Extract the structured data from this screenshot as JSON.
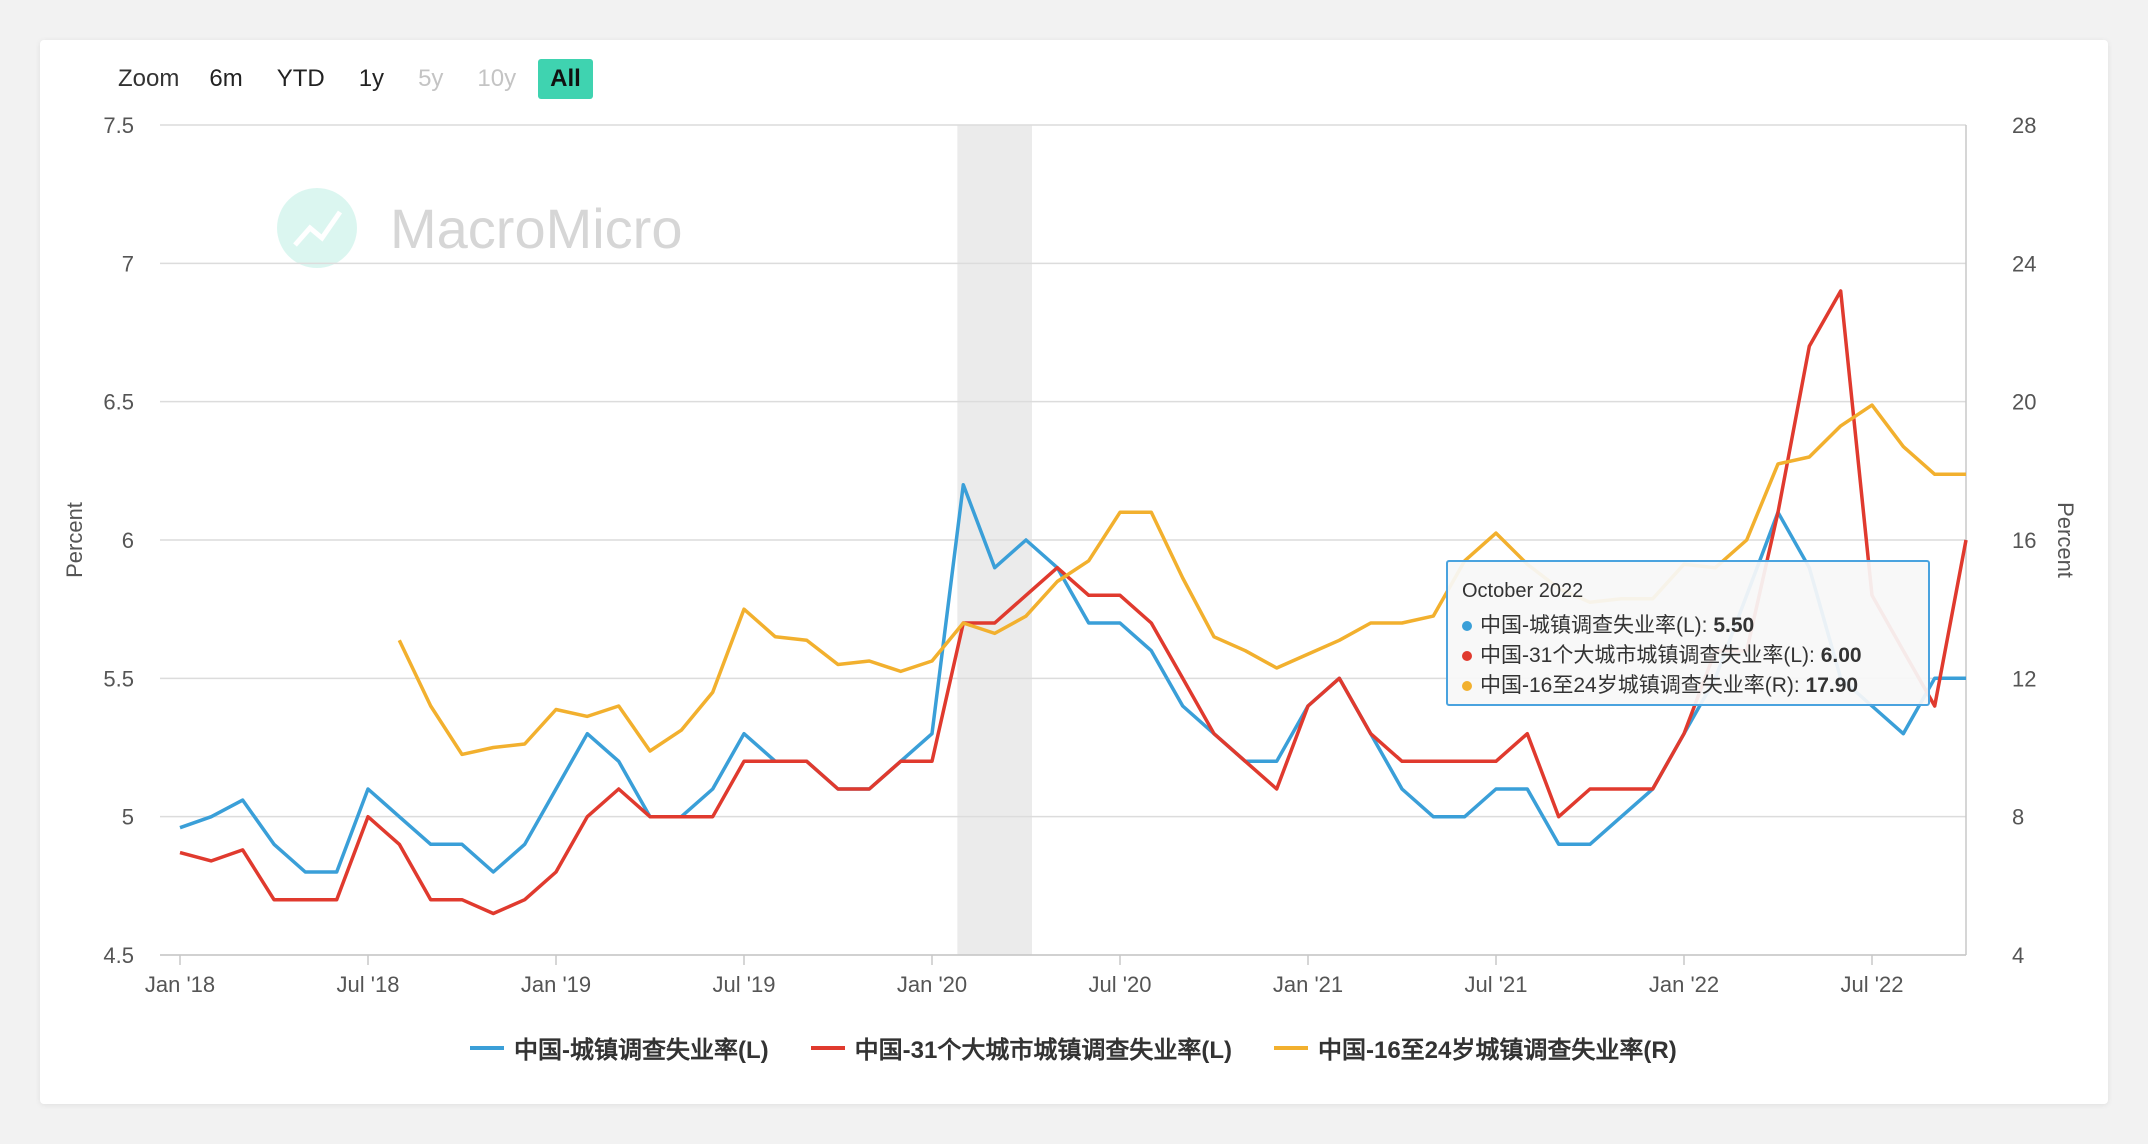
{
  "zoom": {
    "label": "Zoom",
    "buttons": [
      {
        "label": "6m",
        "state": "normal"
      },
      {
        "label": "YTD",
        "state": "normal"
      },
      {
        "label": "1y",
        "state": "normal"
      },
      {
        "label": "5y",
        "state": "disabled"
      },
      {
        "label": "10y",
        "state": "disabled"
      },
      {
        "label": "All",
        "state": "active"
      }
    ]
  },
  "watermark": "MacroMicro",
  "tooltip": {
    "title": "October 2022",
    "rows": [
      {
        "label": "中国-城镇调查失业率(L): ",
        "value": "5.50",
        "color": "#3a9fd8"
      },
      {
        "label": "中国-31个大城市城镇调查失业率(L): ",
        "value": "6.00",
        "color": "#e03a2e"
      },
      {
        "label": "中国-16至24岁城镇调查失业率(R): ",
        "value": "17.90",
        "color": "#f2b02e"
      }
    ]
  },
  "chart_data": {
    "type": "line",
    "x": [
      "2018-01",
      "2018-02",
      "2018-03",
      "2018-04",
      "2018-05",
      "2018-06",
      "2018-07",
      "2018-08",
      "2018-09",
      "2018-10",
      "2018-11",
      "2018-12",
      "2019-01",
      "2019-02",
      "2019-03",
      "2019-04",
      "2019-05",
      "2019-06",
      "2019-07",
      "2019-08",
      "2019-09",
      "2019-10",
      "2019-11",
      "2019-12",
      "2020-01",
      "2020-02",
      "2020-03",
      "2020-04",
      "2020-05",
      "2020-06",
      "2020-07",
      "2020-08",
      "2020-09",
      "2020-10",
      "2020-11",
      "2020-12",
      "2021-01",
      "2021-02",
      "2021-03",
      "2021-04",
      "2021-05",
      "2021-06",
      "2021-07",
      "2021-08",
      "2021-09",
      "2021-10",
      "2021-11",
      "2021-12",
      "2022-01",
      "2022-02",
      "2022-03",
      "2022-04",
      "2022-05",
      "2022-06",
      "2022-07",
      "2022-08",
      "2022-09",
      "2022-10"
    ],
    "x_tick_labels": [
      "Jan '18",
      "Jul '18",
      "Jan '19",
      "Jul '19",
      "Jan '20",
      "Jul '20",
      "Jan '21",
      "Jul '21",
      "Jan '22",
      "Jul '22"
    ],
    "y_left": {
      "label": "Percent",
      "ticks": [
        "4.5",
        "5",
        "5.5",
        "6",
        "6.5",
        "7",
        "7.5"
      ],
      "range": [
        4.5,
        7.5
      ]
    },
    "y_right": {
      "label": "Percent",
      "ticks": [
        "4",
        "8",
        "12",
        "16",
        "20",
        "24",
        "28"
      ],
      "range": [
        4,
        28
      ]
    },
    "shaded_range": [
      "2020-02",
      "2020-04"
    ],
    "grid": true,
    "legend_position": "bottom",
    "series": [
      {
        "name": "中国-城镇调查失业率(L)",
        "axis": "left",
        "color": "#3a9fd8",
        "values": [
          4.96,
          5.0,
          5.06,
          4.9,
          4.8,
          4.8,
          5.1,
          5.0,
          4.9,
          4.9,
          4.8,
          4.9,
          5.1,
          5.3,
          5.2,
          5.0,
          5.0,
          5.1,
          5.3,
          5.2,
          5.2,
          5.1,
          5.1,
          5.2,
          5.3,
          6.2,
          5.9,
          6.0,
          5.9,
          5.7,
          5.7,
          5.6,
          5.4,
          5.3,
          5.2,
          5.2,
          5.4,
          5.5,
          5.3,
          5.1,
          5.0,
          5.0,
          5.1,
          5.1,
          4.9,
          4.9,
          5.0,
          5.1,
          5.3,
          5.5,
          5.8,
          6.1,
          5.9,
          5.5,
          5.4,
          5.3,
          5.5,
          5.5
        ]
      },
      {
        "name": "中国-31个大城市城镇调查失业率(L)",
        "axis": "left",
        "color": "#e03a2e",
        "values": [
          4.87,
          4.84,
          4.88,
          4.7,
          4.7,
          4.7,
          5.0,
          4.9,
          4.7,
          4.7,
          4.65,
          4.7,
          4.8,
          5.0,
          5.1,
          5.0,
          5.0,
          5.0,
          5.2,
          5.2,
          5.2,
          5.1,
          5.1,
          5.2,
          5.2,
          5.7,
          5.7,
          5.8,
          5.9,
          5.8,
          5.8,
          5.7,
          5.5,
          5.3,
          5.2,
          5.1,
          5.4,
          5.5,
          5.3,
          5.2,
          5.2,
          5.2,
          5.2,
          5.3,
          5.0,
          5.1,
          5.1,
          5.1,
          5.3,
          5.6,
          5.6,
          6.1,
          6.7,
          6.9,
          5.8,
          5.6,
          5.4,
          6.0
        ]
      },
      {
        "name": "中国-16至24岁城镇调查失业率(R)",
        "axis": "right",
        "color": "#f2b02e",
        "values": [
          null,
          null,
          null,
          null,
          null,
          null,
          null,
          13.1,
          11.2,
          9.8,
          10.0,
          10.1,
          11.1,
          10.9,
          11.2,
          9.9,
          10.5,
          11.6,
          14.0,
          13.2,
          13.1,
          12.4,
          12.5,
          12.2,
          12.5,
          13.6,
          13.3,
          13.8,
          14.8,
          15.4,
          16.8,
          16.8,
          14.9,
          13.2,
          12.8,
          12.3,
          12.7,
          13.1,
          13.6,
          13.6,
          13.8,
          15.4,
          16.2,
          15.3,
          14.6,
          14.2,
          14.3,
          14.3,
          15.3,
          15.2,
          16.0,
          18.2,
          18.4,
          19.3,
          19.9,
          18.7,
          17.9,
          17.9
        ]
      }
    ]
  },
  "legend": [
    {
      "label": "中国-城镇调查失业率(L)",
      "color": "#3a9fd8"
    },
    {
      "label": "中国-31个大城市城镇调查失业率(L)",
      "color": "#e03a2e"
    },
    {
      "label": "中国-16至24岁城镇调查失业率(R)",
      "color": "#f2b02e"
    }
  ]
}
